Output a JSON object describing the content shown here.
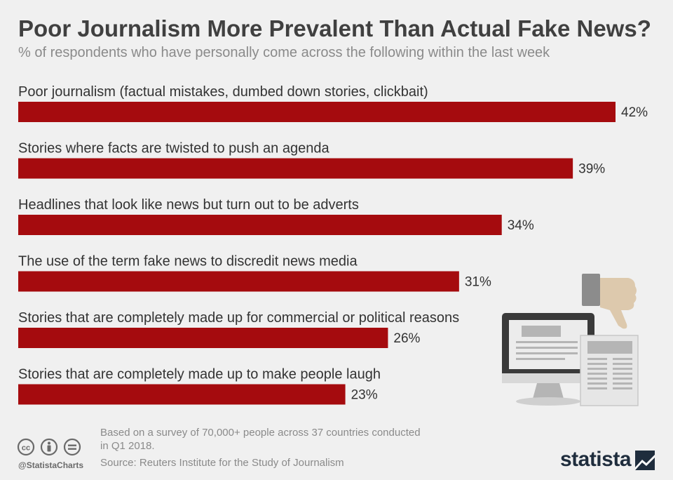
{
  "title": "Poor Journalism More Prevalent Than Actual Fake News?",
  "subtitle": "% of respondents who have personally come across the following within the last week",
  "chart_data": {
    "type": "bar",
    "orientation": "horizontal",
    "title": "Poor Journalism More Prevalent Than Actual Fake News?",
    "subtitle": "% of respondents who have personally come across the following within the last week",
    "categories": [
      "Poor journalism (factual mistakes, dumbed down stories, clickbait)",
      "Stories where facts are twisted to push an agenda",
      "Headlines that look like news but turn out to be adverts",
      "The use of the term fake news to discredit news media",
      "Stories that are completely made up for commercial or political reasons",
      "Stories that are completely made up to make people laugh"
    ],
    "values": [
      42,
      39,
      34,
      31,
      26,
      23
    ],
    "value_suffix": "%",
    "bar_color": "#a50b0e",
    "xlim": [
      0,
      42
    ],
    "grid": false,
    "legend": "none"
  },
  "footer": {
    "note": "Based on a survey of 70,000+ people across 37 countries conducted in Q1 2018.",
    "source": "Source: Reuters Institute for the Study of Journalism",
    "handle": "@StatistaCharts",
    "brand": "statista"
  },
  "icons": {
    "illustration": "computer-newspaper-thumbs-down-icon",
    "cc": "creative-commons-icon",
    "by": "attribution-icon",
    "nd": "no-derivatives-icon",
    "brand_mark": "statista-logo-icon"
  },
  "colors": {
    "background": "#f0f0f0",
    "bar": "#a50b0e",
    "title": "#404040",
    "muted": "#8a8a8a",
    "brand": "#1f2d3d"
  }
}
